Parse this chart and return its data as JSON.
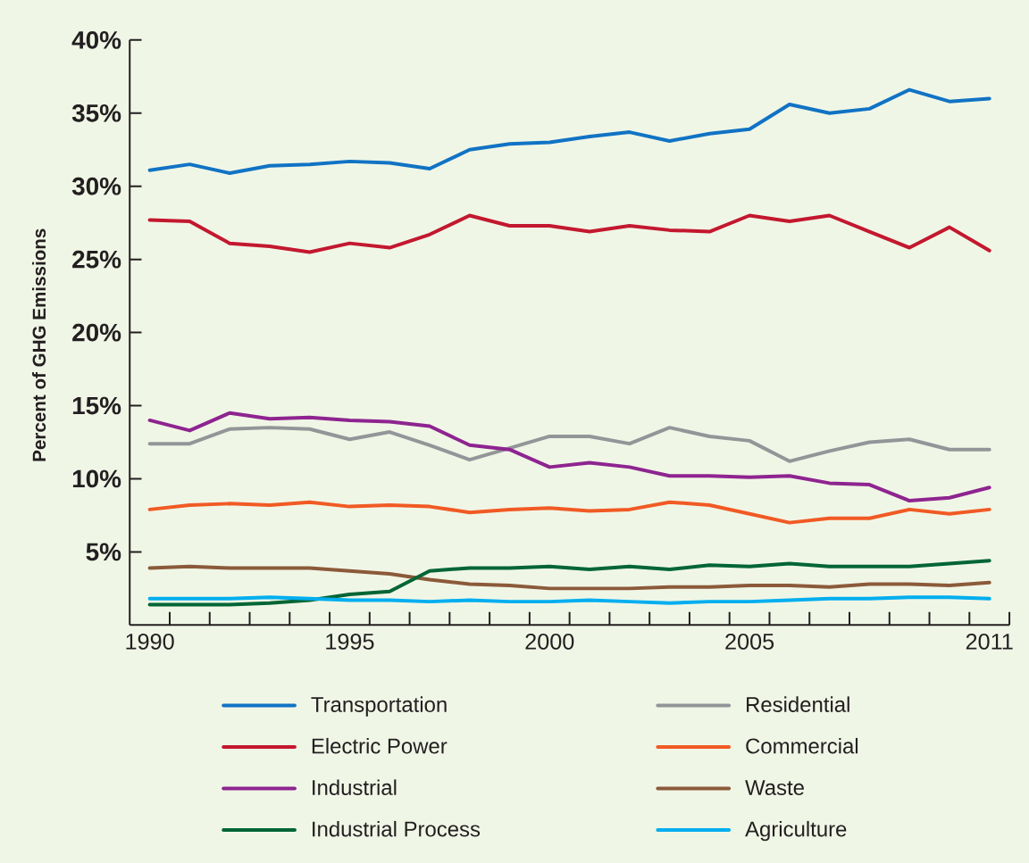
{
  "chart_data": {
    "type": "line",
    "ylabel": "Percent of GHG Emissions",
    "x": [
      1990,
      1991,
      1992,
      1993,
      1994,
      1995,
      1996,
      1997,
      1998,
      1999,
      2000,
      2001,
      2002,
      2003,
      2004,
      2005,
      2006,
      2007,
      2008,
      2009,
      2010,
      2011
    ],
    "xlim": [
      1989.5,
      2011.5
    ],
    "xticks": [
      1990,
      1995,
      2000,
      2005,
      2011,
      {
        "value": 1990.5,
        "label": null
      },
      {
        "value": 1991.5,
        "label": null
      },
      {
        "value": 1992.5,
        "label": null
      },
      {
        "value": 1993.5,
        "label": null
      },
      {
        "value": 1994.5,
        "label": null
      },
      {
        "value": 1995.5,
        "label": null
      },
      {
        "value": 1996.5,
        "label": null
      },
      {
        "value": 1997.5,
        "label": null
      },
      {
        "value": 1998.5,
        "label": null
      },
      {
        "value": 1999.5,
        "label": null
      },
      {
        "value": 2000.5,
        "label": null
      },
      {
        "value": 2001.5,
        "label": null
      },
      {
        "value": 2002.5,
        "label": null
      },
      {
        "value": 2003.5,
        "label": null
      },
      {
        "value": 2004.5,
        "label": null
      },
      {
        "value": 2005.5,
        "label": null
      },
      {
        "value": 2006.5,
        "label": null
      },
      {
        "value": 2007.5,
        "label": null
      },
      {
        "value": 2008.5,
        "label": null
      },
      {
        "value": 2009.5,
        "label": null
      },
      {
        "value": 2010.5,
        "label": null
      },
      {
        "value": 2011.5,
        "label": null
      }
    ],
    "ylim": [
      0,
      40
    ],
    "yticks": [
      {
        "value": 5,
        "label": "5%"
      },
      {
        "value": 10,
        "label": "10%"
      },
      {
        "value": 15,
        "label": "15%"
      },
      {
        "value": 20,
        "label": "20%"
      },
      {
        "value": 25,
        "label": "25%"
      },
      {
        "value": 30,
        "label": "30%"
      },
      {
        "value": 35,
        "label": "35%"
      },
      {
        "value": 40,
        "label": "40%"
      }
    ],
    "legend": "bottom",
    "series": [
      {
        "name": "Transportation",
        "color": "#1173c4",
        "values": [
          31.1,
          31.5,
          30.9,
          31.4,
          31.5,
          31.7,
          31.6,
          31.2,
          32.5,
          32.9,
          33.0,
          33.4,
          33.7,
          33.1,
          33.6,
          33.9,
          35.6,
          35.0,
          35.3,
          36.6,
          35.8,
          36.0
        ]
      },
      {
        "name": "Electric Power",
        "color": "#c3182f",
        "values": [
          27.7,
          27.6,
          26.1,
          25.9,
          25.5,
          26.1,
          25.8,
          26.7,
          28.0,
          27.3,
          27.3,
          26.9,
          27.3,
          27.0,
          26.9,
          28.0,
          27.6,
          28.0,
          26.9,
          25.8,
          27.2,
          25.6
        ]
      },
      {
        "name": "Industrial",
        "color": "#8e2490",
        "values": [
          14.0,
          13.3,
          14.5,
          14.1,
          14.2,
          14.0,
          13.9,
          13.6,
          12.3,
          12.0,
          10.8,
          11.1,
          10.8,
          10.2,
          10.2,
          10.1,
          10.2,
          9.7,
          9.6,
          8.5,
          8.7,
          9.4
        ]
      },
      {
        "name": "Industrial Process",
        "color": "#026535",
        "values": [
          1.4,
          1.4,
          1.4,
          1.5,
          1.7,
          2.1,
          2.3,
          3.7,
          3.9,
          3.9,
          4.0,
          3.8,
          4.0,
          3.8,
          4.1,
          4.0,
          4.2,
          4.0,
          4.0,
          4.0,
          4.2,
          4.4
        ]
      },
      {
        "name": "Residential",
        "color": "#939598",
        "values": [
          12.4,
          12.4,
          13.4,
          13.5,
          13.4,
          12.7,
          13.2,
          12.3,
          11.3,
          12.1,
          12.9,
          12.9,
          12.4,
          13.5,
          12.9,
          12.6,
          11.2,
          11.9,
          12.5,
          12.7,
          12.0,
          12.0
        ]
      },
      {
        "name": "Commercial",
        "color": "#f15a24",
        "values": [
          7.9,
          8.2,
          8.3,
          8.2,
          8.4,
          8.1,
          8.2,
          8.1,
          7.7,
          7.9,
          8.0,
          7.8,
          7.9,
          8.4,
          8.2,
          7.6,
          7.0,
          7.3,
          7.3,
          7.9,
          7.6,
          7.9
        ]
      },
      {
        "name": "Waste",
        "color": "#8b5a3a",
        "values": [
          3.9,
          4.0,
          3.9,
          3.9,
          3.9,
          3.7,
          3.5,
          3.1,
          2.8,
          2.7,
          2.5,
          2.5,
          2.5,
          2.6,
          2.6,
          2.7,
          2.7,
          2.6,
          2.8,
          2.8,
          2.7,
          2.9
        ]
      },
      {
        "name": "Agriculture",
        "color": "#00aeef",
        "values": [
          1.8,
          1.8,
          1.8,
          1.9,
          1.8,
          1.7,
          1.7,
          1.6,
          1.7,
          1.6,
          1.6,
          1.7,
          1.6,
          1.5,
          1.6,
          1.6,
          1.7,
          1.8,
          1.8,
          1.9,
          1.9,
          1.8
        ]
      }
    ]
  }
}
